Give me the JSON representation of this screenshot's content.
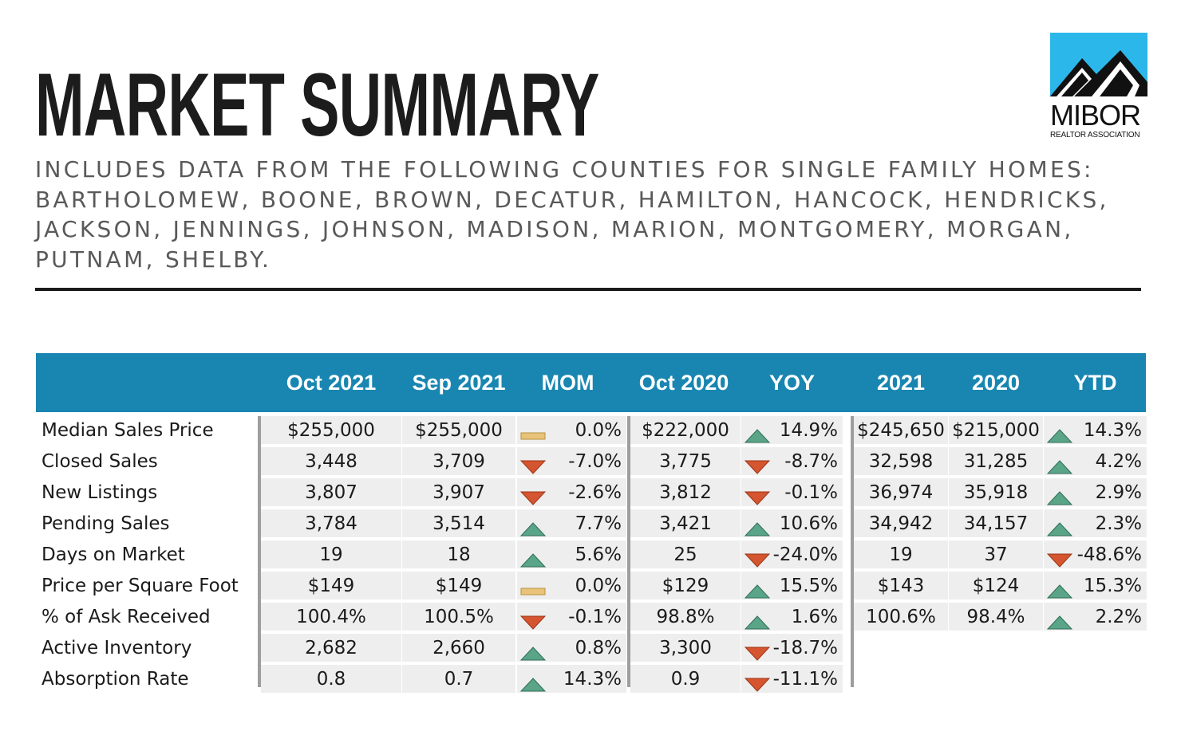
{
  "header": {
    "title": "MARKET SUMMARY",
    "subtitle": "INCLUDES DATA FROM THE FOLLOWING COUNTIES FOR SINGLE FAMILY HOMES: BARTHOLOMEW, BOONE, BROWN, DECATUR, HAMILTON, HANCOCK, HENDRICKS, JACKSON, JENNINGS, JOHNSON, MADISON, MARION, MONTGOMERY, MORGAN, PUTNAM, SHELBY."
  },
  "logo": {
    "name": "MIBOR",
    "tagline": "REALTOR ASSOCIATION"
  },
  "colors": {
    "header_bg": "#1986b1",
    "up": "#5aa488",
    "down": "#d4552f",
    "flat": "#e9c37a"
  },
  "table": {
    "columns": [
      "Oct 2021",
      "Sep 2021",
      "MOM",
      "Oct 2020",
      "YOY",
      "2021",
      "2020",
      "YTD"
    ],
    "rows": [
      {
        "label": "Median Sales Price",
        "oct2021": "$255,000",
        "sep2021": "$255,000",
        "mom": "0.0%",
        "mom_dir": "flat",
        "oct2020": "$222,000",
        "yoy": "14.9%",
        "yoy_dir": "up",
        "ytd2021": "$245,650",
        "ytd2020": "$215,000",
        "ytd": "14.3%",
        "ytd_dir": "up"
      },
      {
        "label": "Closed Sales",
        "oct2021": "3,448",
        "sep2021": "3,709",
        "mom": "-7.0%",
        "mom_dir": "down",
        "oct2020": "3,775",
        "yoy": "-8.7%",
        "yoy_dir": "down",
        "ytd2021": "32,598",
        "ytd2020": "31,285",
        "ytd": "4.2%",
        "ytd_dir": "up"
      },
      {
        "label": "New Listings",
        "oct2021": "3,807",
        "sep2021": "3,907",
        "mom": "-2.6%",
        "mom_dir": "down",
        "oct2020": "3,812",
        "yoy": "-0.1%",
        "yoy_dir": "down",
        "ytd2021": "36,974",
        "ytd2020": "35,918",
        "ytd": "2.9%",
        "ytd_dir": "up"
      },
      {
        "label": "Pending Sales",
        "oct2021": "3,784",
        "sep2021": "3,514",
        "mom": "7.7%",
        "mom_dir": "up",
        "oct2020": "3,421",
        "yoy": "10.6%",
        "yoy_dir": "up",
        "ytd2021": "34,942",
        "ytd2020": "34,157",
        "ytd": "2.3%",
        "ytd_dir": "up"
      },
      {
        "label": "Days on Market",
        "oct2021": "19",
        "sep2021": "18",
        "mom": "5.6%",
        "mom_dir": "up",
        "oct2020": "25",
        "yoy": "-24.0%",
        "yoy_dir": "down",
        "ytd2021": "19",
        "ytd2020": "37",
        "ytd": "-48.6%",
        "ytd_dir": "down"
      },
      {
        "label": "Price per Square Foot",
        "oct2021": "$149",
        "sep2021": "$149",
        "mom": "0.0%",
        "mom_dir": "flat",
        "oct2020": "$129",
        "yoy": "15.5%",
        "yoy_dir": "up",
        "ytd2021": "$143",
        "ytd2020": "$124",
        "ytd": "15.3%",
        "ytd_dir": "up"
      },
      {
        "label": "% of Ask Received",
        "oct2021": "100.4%",
        "sep2021": "100.5%",
        "mom": "-0.1%",
        "mom_dir": "down",
        "oct2020": "98.8%",
        "yoy": "1.6%",
        "yoy_dir": "up",
        "ytd2021": "100.6%",
        "ytd2020": "98.4%",
        "ytd": "2.2%",
        "ytd_dir": "up"
      },
      {
        "label": "Active Inventory",
        "oct2021": "2,682",
        "sep2021": "2,660",
        "mom": "0.8%",
        "mom_dir": "up",
        "oct2020": "3,300",
        "yoy": "-18.7%",
        "yoy_dir": "down"
      },
      {
        "label": "Absorption Rate",
        "oct2021": "0.8",
        "sep2021": "0.7",
        "mom": "14.3%",
        "mom_dir": "up",
        "oct2020": "0.9",
        "yoy": "-11.1%",
        "yoy_dir": "down"
      }
    ]
  }
}
